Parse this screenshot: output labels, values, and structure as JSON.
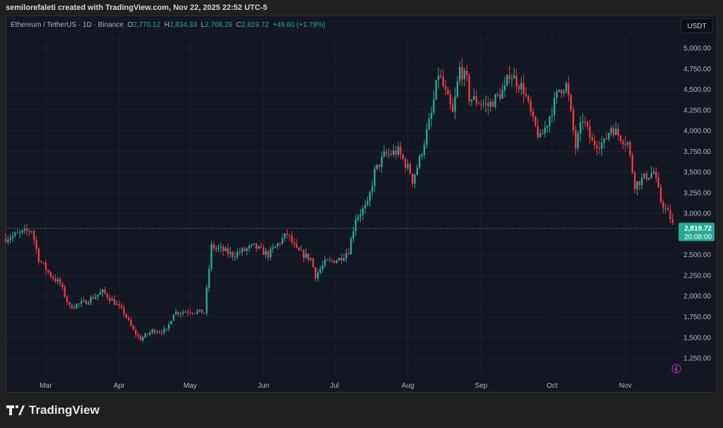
{
  "header": {
    "credit": "semilorefaleti created with TradingView.com, Nov 22, 2025 22:52 UTC-5"
  },
  "legend": {
    "symbol": "Ethereum / TetherUS · 1D · Binance",
    "o_label": "O",
    "o": "2,770.12",
    "h_label": "H",
    "h": "2,834.33",
    "l_label": "L",
    "l": "2,768.29",
    "c_label": "C",
    "c": "2,819.72",
    "change": "+49.60 (+1.79%)"
  },
  "currency_button": "USDT",
  "last_price": {
    "price": "2,819.72",
    "countdown": "20:08:00",
    "value": 2819.72
  },
  "footer": {
    "brand": "TradingView"
  },
  "colors": {
    "up": "#22ab94",
    "down": "#f23645",
    "bg": "#131722",
    "grid": "#1f2330"
  },
  "chart_data": {
    "type": "candlestick",
    "title": "Ethereum / TetherUS · 1D · Binance",
    "ylim": [
      1100,
      5150
    ],
    "y_ticks": [
      5000,
      4750,
      4500,
      4250,
      4000,
      3750,
      3500,
      3250,
      3000,
      2500,
      2250,
      2000,
      1750,
      1500,
      1250
    ],
    "y_tick_labels": [
      "5,000.00",
      "4,750.00",
      "4,500.00",
      "4,250.00",
      "4,000.00",
      "3,750.00",
      "3,500.00",
      "3,250.00",
      "3,000.00",
      "2,500.00",
      "2,250.00",
      "2,000.00",
      "1,750.00",
      "1,500.00",
      "1,250.00"
    ],
    "x_ticks": [
      {
        "label": "Mar",
        "day": 17
      },
      {
        "label": "Apr",
        "day": 48
      },
      {
        "label": "May",
        "day": 78
      },
      {
        "label": "Jun",
        "day": 109
      },
      {
        "label": "Jul",
        "day": 139
      },
      {
        "label": "Aug",
        "day": 170
      },
      {
        "label": "Sep",
        "day": 201
      },
      {
        "label": "Oct",
        "day": 231
      },
      {
        "label": "Nov",
        "day": 262
      }
    ],
    "start_date": "2025-02-20",
    "days": 276,
    "close_anchors": [
      [
        0,
        2700
      ],
      [
        11,
        2800
      ],
      [
        14,
        2450
      ],
      [
        19,
        2250
      ],
      [
        23,
        2150
      ],
      [
        27,
        1870
      ],
      [
        33,
        1920
      ],
      [
        41,
        2050
      ],
      [
        45,
        1950
      ],
      [
        50,
        1800
      ],
      [
        54,
        1580
      ],
      [
        57,
        1480
      ],
      [
        62,
        1580
      ],
      [
        68,
        1580
      ],
      [
        71,
        1800
      ],
      [
        78,
        1820
      ],
      [
        84,
        1800
      ],
      [
        87,
        2600
      ],
      [
        92,
        2550
      ],
      [
        96,
        2500
      ],
      [
        105,
        2600
      ],
      [
        111,
        2500
      ],
      [
        119,
        2750
      ],
      [
        123,
        2550
      ],
      [
        129,
        2450
      ],
      [
        131,
        2250
      ],
      [
        135,
        2400
      ],
      [
        141,
        2450
      ],
      [
        145,
        2550
      ],
      [
        148,
        2950
      ],
      [
        153,
        3100
      ],
      [
        156,
        3500
      ],
      [
        160,
        3700
      ],
      [
        166,
        3750
      ],
      [
        171,
        3500
      ],
      [
        172,
        3400
      ],
      [
        175,
        3650
      ],
      [
        180,
        4200
      ],
      [
        183,
        4700
      ],
      [
        186,
        4450
      ],
      [
        189,
        4200
      ],
      [
        192,
        4750
      ],
      [
        195,
        4600
      ],
      [
        196,
        4400
      ],
      [
        204,
        4300
      ],
      [
        211,
        4500
      ],
      [
        213,
        4700
      ],
      [
        219,
        4500
      ],
      [
        223,
        4100
      ],
      [
        226,
        3900
      ],
      [
        229,
        4100
      ],
      [
        234,
        4500
      ],
      [
        237,
        4550
      ],
      [
        238,
        4400
      ],
      [
        241,
        3800
      ],
      [
        244,
        4150
      ],
      [
        248,
        3850
      ],
      [
        253,
        3850
      ],
      [
        256,
        4050
      ],
      [
        259,
        3950
      ],
      [
        263,
        3850
      ],
      [
        266,
        3350
      ],
      [
        271,
        3450
      ],
      [
        274,
        3500
      ],
      [
        277,
        3150
      ],
      [
        281,
        2950
      ],
      [
        283,
        2770
      ],
      [
        284,
        2820
      ]
    ]
  }
}
